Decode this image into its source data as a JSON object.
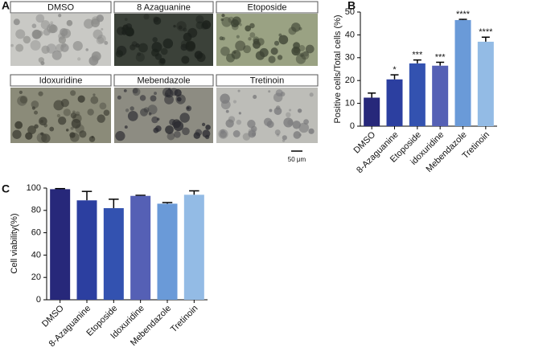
{
  "panel_a": {
    "label": "A",
    "images": [
      "DMSO",
      "8 Azaguanine",
      "Etoposide",
      "Idoxuridine",
      "Mebendazole",
      "Tretinoin"
    ],
    "scale_bar": "50 μm"
  },
  "chart_data": [
    {
      "type": "bar",
      "panel_label": "B",
      "ylabel": "Positive cells/Total cells (%)",
      "categories": [
        "DMSO",
        "8-Azaguanine",
        "Etoposide",
        "idoxuridine",
        "Mebendazole",
        "Tretinoin"
      ],
      "values": [
        12.5,
        20.5,
        27.5,
        26.5,
        46.5,
        37
      ],
      "errors": [
        2,
        2,
        1.5,
        1.5,
        0.3,
        2
      ],
      "annotations": [
        null,
        "*",
        "***",
        "***",
        "****",
        "****"
      ],
      "colors": [
        "#27287a",
        "#2c3fa0",
        "#3352b0",
        "#5560b5",
        "#6a9ad8",
        "#93bbe5"
      ],
      "ylim": [
        0,
        50
      ],
      "yticks": [
        0,
        10,
        20,
        30,
        40,
        50
      ]
    },
    {
      "type": "bar",
      "panel_label": "C",
      "ylabel": "Cell viability(%)",
      "categories": [
        "DMSO",
        "8-Azaguanine",
        "Etoposide",
        "Idoxuridine",
        "Mebendazole",
        "Tretinoin"
      ],
      "values": [
        99,
        89,
        82,
        93,
        86,
        94
      ],
      "errors": [
        0.5,
        8,
        8,
        0.5,
        1,
        3.5
      ],
      "colors": [
        "#27287a",
        "#2c3fa0",
        "#3352b0",
        "#5560b5",
        "#6a9ad8",
        "#93bbe5"
      ],
      "ylim": [
        0,
        100
      ],
      "yticks": [
        0,
        20,
        40,
        60,
        80,
        100
      ]
    }
  ]
}
